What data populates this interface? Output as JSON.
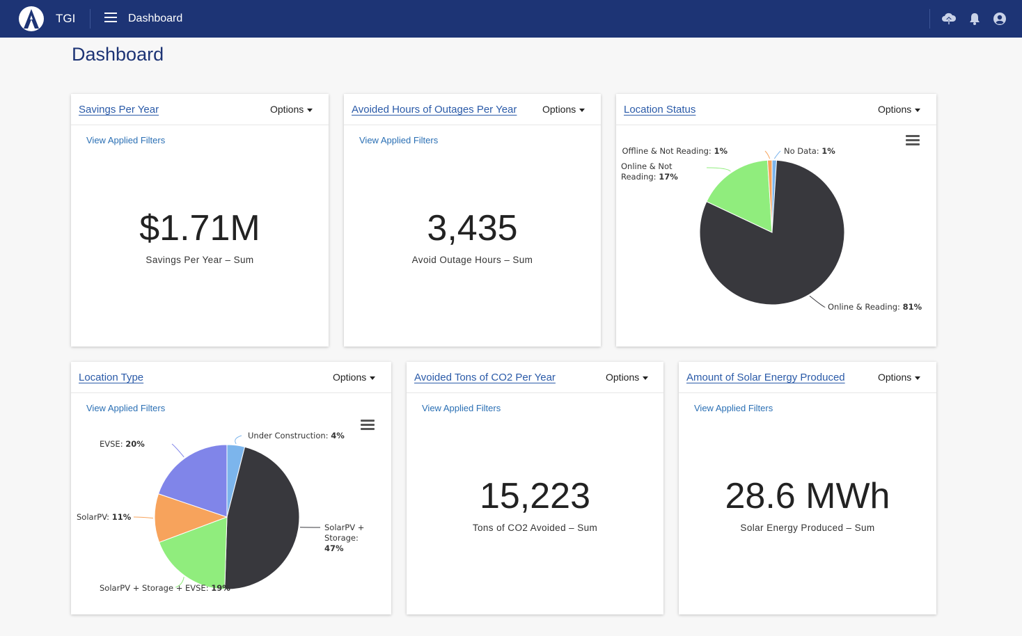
{
  "header": {
    "brand": "TGI",
    "title": "Dashboard",
    "colors": {
      "bar": "#1d3475"
    },
    "icons": [
      "logo-icon",
      "menu-icon",
      "cloud-upload-icon",
      "bell-icon",
      "user-circle-icon"
    ]
  },
  "page_title": "Dashboard",
  "common": {
    "options_label": "Options",
    "filters_label": "View Applied Filters"
  },
  "cards": {
    "savings": {
      "title": "Savings Per Year",
      "value": "$1.71M",
      "label": "Savings Per Year – Sum"
    },
    "outages": {
      "title": "Avoided Hours of Outages Per Year",
      "value": "3,435",
      "label": "Avoid Outage Hours – Sum"
    },
    "location_status": {
      "title": "Location Status"
    },
    "location_type": {
      "title": "Location Type"
    },
    "co2": {
      "title": "Avoided Tons of CO2 Per Year",
      "value": "15,223",
      "label": "Tons of CO2 Avoided – Sum"
    },
    "solar": {
      "title": "Amount of Solar Energy Produced",
      "value": "28.6 MWh",
      "label": "Solar Energy Produced – Sum"
    }
  },
  "chart_data": [
    {
      "type": "pie",
      "slices": [
        {
          "name": "No Data",
          "value": 1,
          "label": "1%",
          "color": "#7cb5ec"
        },
        {
          "name": "Online & Reading",
          "value": 81,
          "label": "81%",
          "color": "#38383d"
        },
        {
          "name": "Online & Not Reading",
          "value": 17,
          "label": "17%",
          "color": "#90ed7d"
        },
        {
          "name": "Offline & Not Reading",
          "value": 1,
          "label": "1%",
          "color": "#f7a35c"
        }
      ]
    },
    {
      "type": "pie",
      "slices": [
        {
          "name": "Under Construction",
          "value": 4,
          "label": "4%",
          "color": "#7cb5ec"
        },
        {
          "name": "SolarPV + Storage",
          "value": 47,
          "label": "47%",
          "color": "#38383d"
        },
        {
          "name": "SolarPV + Storage + EVSE",
          "value": 19,
          "label": "19%",
          "color": "#90ed7d"
        },
        {
          "name": "SolarPV",
          "value": 11,
          "label": "11%",
          "color": "#f7a35c"
        },
        {
          "name": "EVSE",
          "value": 20,
          "label": "20%",
          "color": "#8085e9"
        }
      ]
    }
  ]
}
